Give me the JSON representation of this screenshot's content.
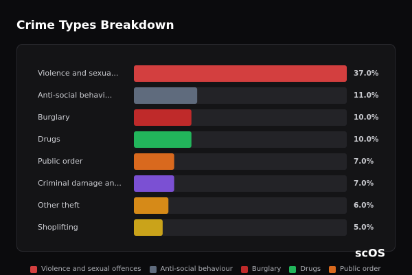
{
  "chart_data": {
    "type": "hbar",
    "title": "Crime Types Breakdown",
    "categories": [
      "Violence and sexua...",
      "Anti-social behavi...",
      "Burglary",
      "Drugs",
      "Public order",
      "Criminal damage an...",
      "Other theft",
      "Shoplifting"
    ],
    "values": [
      37,
      11,
      10,
      10,
      7,
      7,
      6,
      5
    ],
    "value_labels": [
      "37.0%",
      "11.0%",
      "10.0%",
      "10.0%",
      "7.0%",
      "7.0%",
      "6.0%",
      "5.0%"
    ],
    "colors": [
      "#d33f3f",
      "#5f6b7d",
      "#bf2a2a",
      "#22b55b",
      "#d9691e",
      "#7b50d3",
      "#d68a18",
      "#caa31a"
    ],
    "xlim": [
      0,
      37
    ],
    "legend": [
      "Violence and sexual offences",
      "Anti-social behaviour",
      "Burglary",
      "Drugs",
      "Public order"
    ],
    "watermark": "scOS"
  }
}
